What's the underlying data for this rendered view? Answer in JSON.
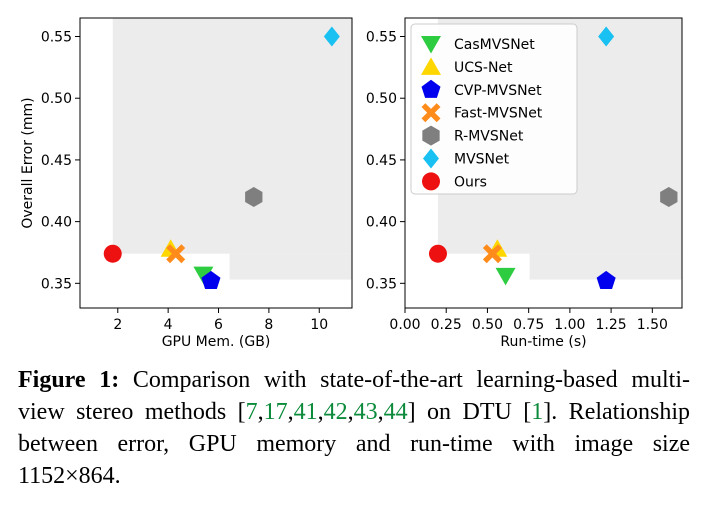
{
  "chart_data": [
    {
      "type": "scatter",
      "xlabel": "GPU Mem. (GB)",
      "ylabel": "Overall Error (mm)",
      "xlim": [
        0.5,
        11.3
      ],
      "ylim": [
        0.33,
        0.565
      ],
      "xticks": [
        2,
        4,
        6,
        8,
        10
      ],
      "yticks": [
        0.35,
        0.4,
        0.45,
        0.5,
        0.55
      ],
      "ytick_labels": [
        "0.35",
        "0.40",
        "0.45",
        "0.50",
        "0.55"
      ],
      "grid": false,
      "series": [
        {
          "name": "CasMVSNet",
          "marker": "triangle-down",
          "color": "#2ecc40",
          "x": 5.4,
          "y": 0.357
        },
        {
          "name": "UCS-Net",
          "marker": "triangle-up",
          "color": "#ffd700",
          "x": 4.1,
          "y": 0.378
        },
        {
          "name": "CVP-MVSNet",
          "marker": "pentagon",
          "color": "#0000ee",
          "x": 5.7,
          "y": 0.352
        },
        {
          "name": "Fast-MVSNet",
          "marker": "x",
          "color": "#ff8c1a",
          "x": 4.3,
          "y": 0.374
        },
        {
          "name": "R-MVSNet",
          "marker": "hexagon",
          "color": "#7f7f7f",
          "x": 7.4,
          "y": 0.42
        },
        {
          "name": "MVSNet",
          "marker": "diamond",
          "color": "#19c1f2",
          "x": 10.5,
          "y": 0.55
        },
        {
          "name": "Ours",
          "marker": "circle",
          "color": "#ee1111",
          "x": 1.8,
          "y": 0.374
        }
      ]
    },
    {
      "type": "scatter",
      "xlabel": "Run-time (s)",
      "ylabel": "",
      "xlim": [
        0.0,
        1.68
      ],
      "ylim": [
        0.33,
        0.565
      ],
      "xticks": [
        0.0,
        0.25,
        0.5,
        0.75,
        1.0,
        1.25,
        1.5
      ],
      "xtick_labels": [
        "0.00",
        "0.25",
        "0.50",
        "0.75",
        "1.00",
        "1.25",
        "1.50"
      ],
      "yticks": [
        0.35,
        0.4,
        0.45,
        0.5,
        0.55
      ],
      "ytick_labels": [
        "0.35",
        "0.40",
        "0.45",
        "0.50",
        "0.55"
      ],
      "grid": false,
      "legend": "top-left",
      "series": [
        {
          "name": "CasMVSNet",
          "marker": "triangle-down",
          "color": "#2ecc40",
          "x": 0.61,
          "y": 0.356
        },
        {
          "name": "UCS-Net",
          "marker": "triangle-up",
          "color": "#ffd700",
          "x": 0.56,
          "y": 0.378
        },
        {
          "name": "CVP-MVSNet",
          "marker": "pentagon",
          "color": "#0000ee",
          "x": 1.22,
          "y": 0.352
        },
        {
          "name": "Fast-MVSNet",
          "marker": "x",
          "color": "#ff8c1a",
          "x": 0.53,
          "y": 0.374
        },
        {
          "name": "R-MVSNet",
          "marker": "hexagon",
          "color": "#7f7f7f",
          "x": 1.6,
          "y": 0.42
        },
        {
          "name": "MVSNet",
          "marker": "diamond",
          "color": "#19c1f2",
          "x": 1.22,
          "y": 0.55
        },
        {
          "name": "Ours",
          "marker": "circle",
          "color": "#ee1111",
          "x": 0.2,
          "y": 0.374
        }
      ]
    }
  ],
  "caption": {
    "label": "Figure 1:",
    "text_before": " Comparison with state-of-the-art learning-based multi-view stereo methods [",
    "citations": [
      "7",
      "17",
      "41",
      "42",
      "43",
      "44"
    ],
    "text_middle": "] on DTU [",
    "dtu_citation": "1",
    "text_after": "]. Relationship between error, GPU memory and run-time with image size 1152×864."
  }
}
